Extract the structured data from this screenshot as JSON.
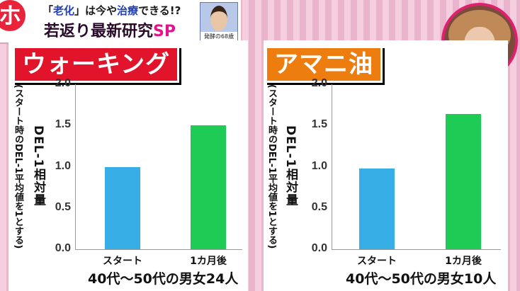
{
  "banner": {
    "logo": "ホ",
    "line1_pre": "「",
    "line1_hl1": "老化",
    "line1_mid": "」は今や",
    "line1_hl2": "治療",
    "line1_post": "できる!?",
    "line2_main": "若返り最新研究",
    "line2_sp": "SP",
    "guest_caption": "発酵の68歳"
  },
  "charts_shared": {
    "ylabel": "DEL-1相対量",
    "ylabel_sub": "(スタート時のDEL-1平均値を1とする)"
  },
  "chart_data": [
    {
      "type": "bar",
      "title": "ウォーキング",
      "categories": [
        "スタート",
        "1カ月後"
      ],
      "values": [
        1.0,
        1.5
      ],
      "xlabel": "40代〜50代の男女24人",
      "ylabel": "DEL-1相対量",
      "ylim": [
        0,
        2.0
      ],
      "yticks": [
        "0.0",
        "0.5",
        "1.0",
        "1.5",
        "2.0"
      ],
      "colors": [
        "#38aee6",
        "#1dcb55"
      ],
      "title_color": "#e1142c"
    },
    {
      "type": "bar",
      "title": "アマニ油",
      "categories": [
        "スタート",
        "1カ月後"
      ],
      "values": [
        0.98,
        1.64
      ],
      "xlabel": "40代〜50代の男女10人",
      "ylabel": "DEL-1相対量",
      "ylim": [
        0,
        2.0
      ],
      "yticks": [
        "0.0",
        "0.5",
        "1.0",
        "1.5",
        "2.0"
      ],
      "colors": [
        "#38aee6",
        "#1dcb55"
      ],
      "title_color": "#ee7d10"
    }
  ]
}
